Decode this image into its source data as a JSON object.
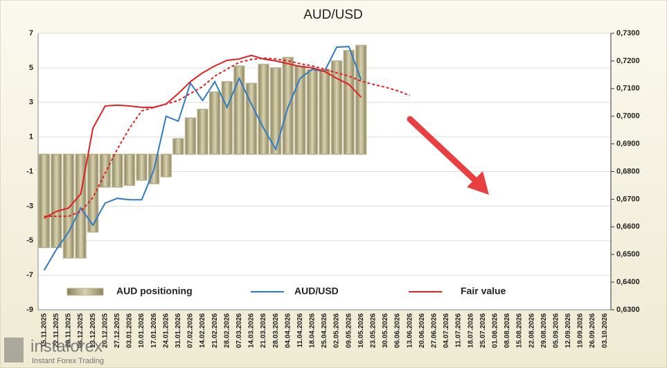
{
  "chart_data": {
    "type": "bar",
    "title": "AUD/USD",
    "categories": [
      "15.11.2025",
      "22.11.2025",
      "29.11.2025",
      "06.12.2025",
      "13.12.2025",
      "20.12.2025",
      "27.12.2025",
      "03.01.2026",
      "10.01.2026",
      "17.01.2026",
      "24.01.2026",
      "31.01.2026",
      "07.02.2026",
      "14.02.2026",
      "21.02.2026",
      "28.02.2026",
      "07.03.2026",
      "14.03.2026",
      "21.03.2026",
      "28.03.2026",
      "04.04.2026",
      "11.04.2026",
      "18.04.2026",
      "25.04.2026",
      "02.05.2026",
      "09.05.2026",
      "16.05.2026",
      "23.05.2026",
      "30.05.2026",
      "06.06.2026",
      "13.06.2026",
      "20.06.2026",
      "27.06.2026",
      "04.07.2026",
      "11.07.2026",
      "18.07.2026",
      "25.07.2026",
      "01.08.2026",
      "08.08.2026",
      "15.08.2026",
      "22.08.2026",
      "29.08.2026",
      "05.09.2026",
      "12.09.2026",
      "19.09.2026",
      "26.09.2026",
      "03.10.2026"
    ],
    "series": [
      {
        "name": "AUD positioning",
        "type": "bar",
        "color": "#b8b08a",
        "values": [
          -5.4,
          -5.4,
          -6.0,
          -6.0,
          -4.5,
          -1.9,
          -1.9,
          -1.8,
          -1.5,
          -1.7,
          -1.3,
          0.9,
          2.1,
          2.6,
          3.6,
          4.2,
          5.1,
          4.1,
          5.2,
          5.0,
          5.6,
          5.1,
          4.9,
          4.9,
          5.4,
          6.0,
          6.3,
          null,
          null,
          null,
          null,
          null,
          null,
          null,
          null,
          null,
          null,
          null,
          null,
          null,
          null,
          null,
          null,
          null,
          null,
          null,
          null
        ]
      },
      {
        "name": "AUD/USD",
        "type": "line",
        "axis": "y2",
        "color": "#2e7bc4",
        "values": [
          0.6443,
          0.6518,
          0.6581,
          0.6668,
          0.6606,
          0.6686,
          0.6703,
          0.6698,
          0.6698,
          0.6806,
          0.7,
          0.6982,
          0.712,
          0.7057,
          0.7125,
          0.7032,
          0.7137,
          0.7044,
          0.6957,
          0.6881,
          0.7032,
          0.7137,
          0.717,
          0.7162,
          0.725,
          0.7252,
          0.7132,
          null,
          null,
          null,
          null,
          null,
          null,
          null,
          null,
          null,
          null,
          null,
          null,
          null,
          null,
          null,
          null,
          null,
          null,
          null,
          null
        ]
      },
      {
        "name": "Fair value",
        "type": "line",
        "axis": "y2",
        "color": "#e02020",
        "values": [
          0.6631,
          0.6656,
          0.6668,
          0.6719,
          0.6957,
          0.7037,
          0.704,
          0.7037,
          0.7032,
          0.7032,
          0.7044,
          0.7082,
          0.7125,
          0.7157,
          0.7182,
          0.7202,
          0.7207,
          0.722,
          0.7207,
          0.72,
          0.719,
          0.718,
          0.7175,
          0.7162,
          0.7137,
          0.7115,
          0.7069,
          null,
          null,
          null,
          null,
          null,
          null,
          null,
          null,
          null,
          null,
          null,
          null,
          null,
          null,
          null,
          null,
          null,
          null,
          null,
          null
        ]
      },
      {
        "type": "line",
        "axis": "y2",
        "dashed": true,
        "color": "#e02020",
        "values": [
          0.6638,
          0.6638,
          0.6638,
          0.6656,
          0.6706,
          0.6794,
          0.6881,
          0.6957,
          0.7019,
          0.7032,
          0.7044,
          0.7057,
          0.7082,
          0.7107,
          0.7145,
          0.717,
          0.7195,
          0.7205,
          0.721,
          0.7207,
          0.72,
          0.719,
          0.7182,
          0.717,
          0.7157,
          0.7145,
          0.7127,
          0.7115,
          0.7105,
          0.7092,
          0.7075,
          null,
          null,
          null,
          null,
          null,
          null,
          null,
          null,
          null,
          null,
          null,
          null,
          null,
          null,
          null,
          null
        ]
      }
    ],
    "ylim": [
      -9,
      7
    ],
    "yticks": [
      -9,
      -7,
      -5,
      -3,
      -1,
      1,
      3,
      5,
      7
    ],
    "y2lim": [
      0.63,
      0.73
    ],
    "y2ticks": [
      {
        "value": 0.63,
        "label": "0,6300"
      },
      {
        "value": 0.64,
        "label": "0,6400"
      },
      {
        "value": 0.65,
        "label": "0,6500"
      },
      {
        "value": 0.66,
        "label": "0,6600"
      },
      {
        "value": 0.67,
        "label": "0,6700"
      },
      {
        "value": 0.68,
        "label": "0,6800"
      },
      {
        "value": 0.69,
        "label": "0,6900"
      },
      {
        "value": 0.7,
        "label": "0,7000"
      },
      {
        "value": 0.71,
        "label": "0,7100"
      },
      {
        "value": 0.72,
        "label": "0,7200"
      },
      {
        "value": 0.73,
        "label": "0,7300"
      }
    ],
    "grid": true
  },
  "watermark": {
    "brand": "instaforex",
    "tagline": "Instant Forex Trading"
  }
}
